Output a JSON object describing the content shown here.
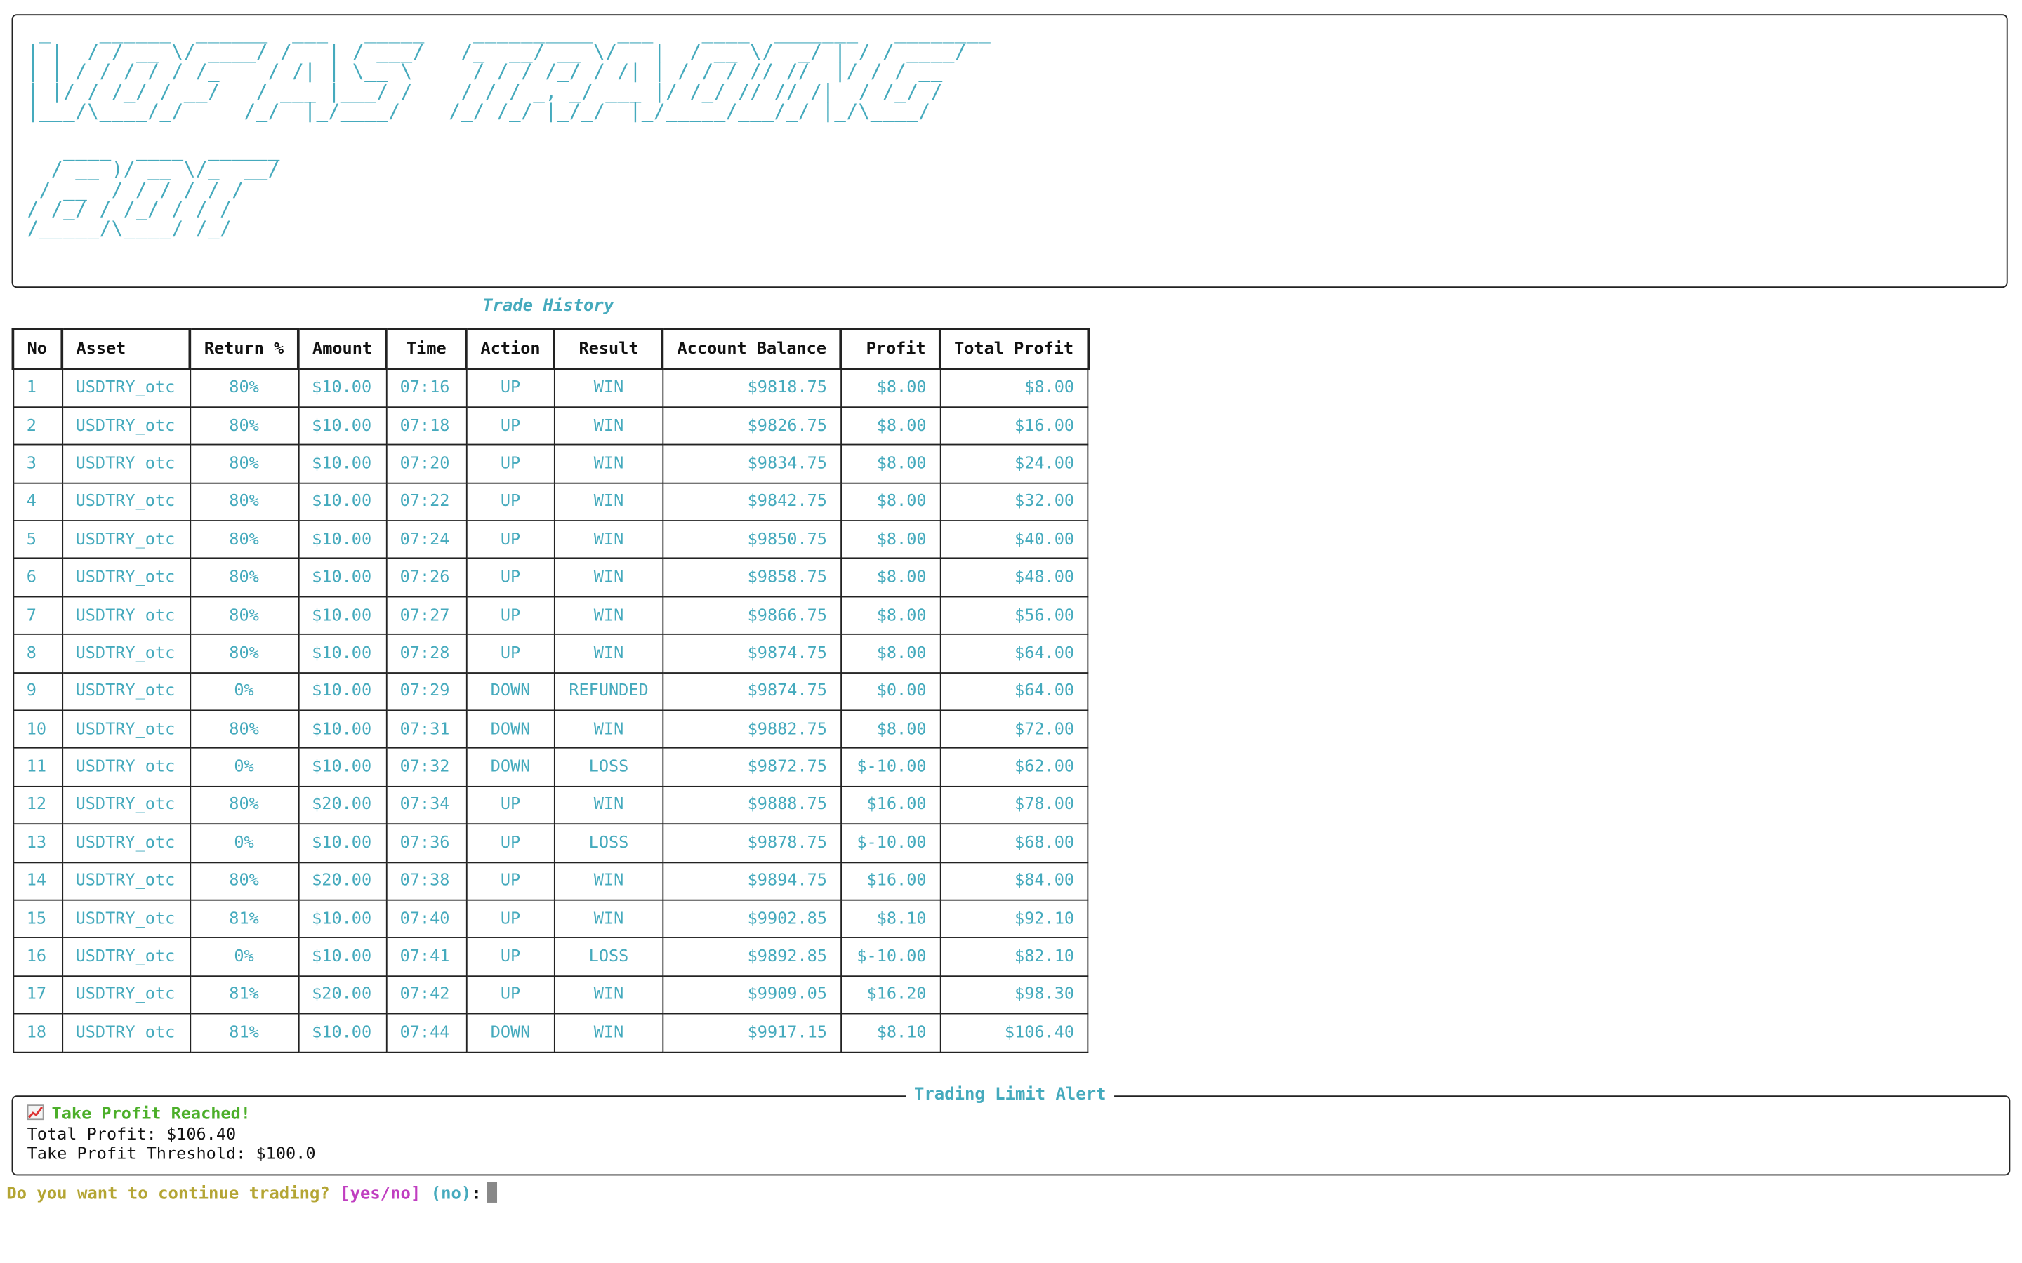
{
  "banner": {
    "ascii_art": " _    ______  ______  ___   _____    __________  ___    ____  _______   ________\n| |  / / __ \\/ ____/ /   | / ___/   /_  __/ __ \\/   |  / __ \\/  _/ | / / ____/\n| | / / / / / /_    / /| | \\__ \\     / / / /_/ / /| | / / / // //  |/ / / __  \n| |/ / /_/ / __/   / ___ |___/ /    / / / _, _/ ___ |/ /_/ // // /|  / /_/ /  \n|___/\\____/_/     /_/  |_/____/    /_/ /_/ |_/_/  |_/_____/___/_/ |_/\\____/   \n\n   ____  ____  ______\n  / __ )/ __ \\/_  __/\n / __  / / / / / /   \n/ /_/ / /_/ / / /    \n/_____/\\____/ /_/     "
  },
  "trade_history": {
    "title": "Trade History",
    "columns": [
      "No",
      "Asset",
      "Return %",
      "Amount",
      "Time",
      "Action",
      "Result",
      "Account Balance",
      "Profit",
      "Total Profit"
    ],
    "rows": [
      {
        "no": "1",
        "asset": "USDTRY_otc",
        "ret": "80%",
        "amount": "$10.00",
        "time": "07:16",
        "action": "UP",
        "result": "WIN",
        "balance": "$9818.75",
        "profit": "$8.00",
        "total": "$8.00"
      },
      {
        "no": "2",
        "asset": "USDTRY_otc",
        "ret": "80%",
        "amount": "$10.00",
        "time": "07:18",
        "action": "UP",
        "result": "WIN",
        "balance": "$9826.75",
        "profit": "$8.00",
        "total": "$16.00"
      },
      {
        "no": "3",
        "asset": "USDTRY_otc",
        "ret": "80%",
        "amount": "$10.00",
        "time": "07:20",
        "action": "UP",
        "result": "WIN",
        "balance": "$9834.75",
        "profit": "$8.00",
        "total": "$24.00"
      },
      {
        "no": "4",
        "asset": "USDTRY_otc",
        "ret": "80%",
        "amount": "$10.00",
        "time": "07:22",
        "action": "UP",
        "result": "WIN",
        "balance": "$9842.75",
        "profit": "$8.00",
        "total": "$32.00"
      },
      {
        "no": "5",
        "asset": "USDTRY_otc",
        "ret": "80%",
        "amount": "$10.00",
        "time": "07:24",
        "action": "UP",
        "result": "WIN",
        "balance": "$9850.75",
        "profit": "$8.00",
        "total": "$40.00"
      },
      {
        "no": "6",
        "asset": "USDTRY_otc",
        "ret": "80%",
        "amount": "$10.00",
        "time": "07:26",
        "action": "UP",
        "result": "WIN",
        "balance": "$9858.75",
        "profit": "$8.00",
        "total": "$48.00"
      },
      {
        "no": "7",
        "asset": "USDTRY_otc",
        "ret": "80%",
        "amount": "$10.00",
        "time": "07:27",
        "action": "UP",
        "result": "WIN",
        "balance": "$9866.75",
        "profit": "$8.00",
        "total": "$56.00"
      },
      {
        "no": "8",
        "asset": "USDTRY_otc",
        "ret": "80%",
        "amount": "$10.00",
        "time": "07:28",
        "action": "UP",
        "result": "WIN",
        "balance": "$9874.75",
        "profit": "$8.00",
        "total": "$64.00"
      },
      {
        "no": "9",
        "asset": "USDTRY_otc",
        "ret": "0%",
        "amount": "$10.00",
        "time": "07:29",
        "action": "DOWN",
        "result": "REFUNDED",
        "balance": "$9874.75",
        "profit": "$0.00",
        "total": "$64.00"
      },
      {
        "no": "10",
        "asset": "USDTRY_otc",
        "ret": "80%",
        "amount": "$10.00",
        "time": "07:31",
        "action": "DOWN",
        "result": "WIN",
        "balance": "$9882.75",
        "profit": "$8.00",
        "total": "$72.00"
      },
      {
        "no": "11",
        "asset": "USDTRY_otc",
        "ret": "0%",
        "amount": "$10.00",
        "time": "07:32",
        "action": "DOWN",
        "result": "LOSS",
        "balance": "$9872.75",
        "profit": "$-10.00",
        "total": "$62.00"
      },
      {
        "no": "12",
        "asset": "USDTRY_otc",
        "ret": "80%",
        "amount": "$20.00",
        "time": "07:34",
        "action": "UP",
        "result": "WIN",
        "balance": "$9888.75",
        "profit": "$16.00",
        "total": "$78.00"
      },
      {
        "no": "13",
        "asset": "USDTRY_otc",
        "ret": "0%",
        "amount": "$10.00",
        "time": "07:36",
        "action": "UP",
        "result": "LOSS",
        "balance": "$9878.75",
        "profit": "$-10.00",
        "total": "$68.00"
      },
      {
        "no": "14",
        "asset": "USDTRY_otc",
        "ret": "80%",
        "amount": "$20.00",
        "time": "07:38",
        "action": "UP",
        "result": "WIN",
        "balance": "$9894.75",
        "profit": "$16.00",
        "total": "$84.00"
      },
      {
        "no": "15",
        "asset": "USDTRY_otc",
        "ret": "81%",
        "amount": "$10.00",
        "time": "07:40",
        "action": "UP",
        "result": "WIN",
        "balance": "$9902.85",
        "profit": "$8.10",
        "total": "$92.10"
      },
      {
        "no": "16",
        "asset": "USDTRY_otc",
        "ret": "0%",
        "amount": "$10.00",
        "time": "07:41",
        "action": "UP",
        "result": "LOSS",
        "balance": "$9892.85",
        "profit": "$-10.00",
        "total": "$82.10"
      },
      {
        "no": "17",
        "asset": "USDTRY_otc",
        "ret": "81%",
        "amount": "$20.00",
        "time": "07:42",
        "action": "UP",
        "result": "WIN",
        "balance": "$9909.05",
        "profit": "$16.20",
        "total": "$98.30"
      },
      {
        "no": "18",
        "asset": "USDTRY_otc",
        "ret": "81%",
        "amount": "$10.00",
        "time": "07:44",
        "action": "DOWN",
        "result": "WIN",
        "balance": "$9917.15",
        "profit": "$8.10",
        "total": "$106.40"
      }
    ]
  },
  "alert": {
    "title": "Trading Limit Alert",
    "icon": "chart-increasing-icon",
    "headline": "Take Profit Reached!",
    "total_profit_line": "Total Profit: $106.40",
    "threshold_line": "Take Profit Threshold: $100.0"
  },
  "prompt": {
    "question": "Do you want to continue trading?",
    "options": "[yes/no]",
    "default": "(no)",
    "colon": ":"
  },
  "colors": {
    "cyan": "#45aabd",
    "green": "#4caf2a",
    "red": "#c0392b",
    "yellow": "#b4a534",
    "magenta": "#c03ec0"
  }
}
